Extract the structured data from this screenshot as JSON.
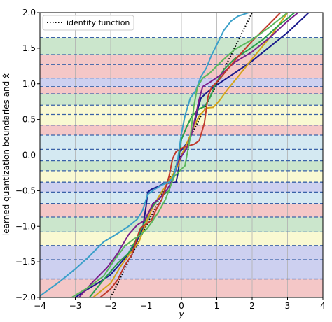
{
  "chart_data": {
    "type": "line",
    "xlabel": "y",
    "ylabel": "learned quantization boundaries and x̂",
    "xlim": [
      -4,
      4
    ],
    "ylim": [
      -2,
      2
    ],
    "x_ticks": [
      -4,
      -3,
      -2,
      -1,
      0,
      1,
      2,
      3,
      4
    ],
    "y_ticks": [
      -2.0,
      -1.5,
      -1.0,
      -0.5,
      0.0,
      0.5,
      1.0,
      1.5,
      2.0
    ],
    "x_tick_labels": [
      "−4",
      "−3",
      "−2",
      "−1",
      "0",
      "1",
      "2",
      "3",
      "4"
    ],
    "y_tick_labels": [
      "−2.0",
      "−1.5",
      "−1.0",
      "−0.5",
      "0.0",
      "0.5",
      "1.0",
      "1.5",
      "2.0"
    ],
    "grid": "vertical",
    "legend": {
      "position": "top-left",
      "entries": [
        "identity function"
      ]
    },
    "bands": [
      {
        "from": -2.0,
        "to": -1.74,
        "color": "#f4c7c7"
      },
      {
        "from": -1.74,
        "to": -1.47,
        "color": "#cdd0f0"
      },
      {
        "from": -1.47,
        "to": -1.27,
        "color": "#cdd0f0"
      },
      {
        "from": -1.27,
        "to": -1.08,
        "color": "#f9f9d2"
      },
      {
        "from": -1.08,
        "to": -0.87,
        "color": "#cbe6cc"
      },
      {
        "from": -0.87,
        "to": -0.68,
        "color": "#f4c7c7"
      },
      {
        "from": -0.68,
        "to": -0.52,
        "color": "#d4e9f2"
      },
      {
        "from": -0.52,
        "to": -0.38,
        "color": "#cdd0f0"
      },
      {
        "from": -0.38,
        "to": -0.22,
        "color": "#f9f9d2"
      },
      {
        "from": -0.22,
        "to": -0.08,
        "color": "#cbe6cc"
      },
      {
        "from": -0.08,
        "to": 0.08,
        "color": "#d4e9f2"
      },
      {
        "from": 0.08,
        "to": 0.28,
        "color": "#d4e9f2"
      },
      {
        "from": 0.28,
        "to": 0.42,
        "color": "#f4c7c7"
      },
      {
        "from": 0.42,
        "to": 0.57,
        "color": "#f9f9d2"
      },
      {
        "from": 0.57,
        "to": 0.7,
        "color": "#f9f9d2"
      },
      {
        "from": 0.7,
        "to": 0.86,
        "color": "#cbe6cc"
      },
      {
        "from": 0.86,
        "to": 0.96,
        "color": "#f4c7c7"
      },
      {
        "from": 0.96,
        "to": 1.08,
        "color": "#cdd0f0"
      },
      {
        "from": 1.08,
        "to": 1.27,
        "color": "#f4c7c7"
      },
      {
        "from": 1.27,
        "to": 1.41,
        "color": "#f4c7c7"
      },
      {
        "from": 1.41,
        "to": 1.65,
        "color": "#cbe6cc"
      },
      {
        "from": 1.65,
        "to": 2.0,
        "color": "#ffffff"
      }
    ],
    "boundaries": [
      -1.74,
      -1.47,
      -1.27,
      -1.08,
      -0.87,
      -0.68,
      -0.52,
      -0.38,
      -0.22,
      -0.08,
      0.08,
      0.28,
      0.42,
      0.57,
      0.7,
      0.86,
      0.96,
      1.08,
      1.27,
      1.41,
      1.65
    ],
    "boundary_color": "#3a62a8",
    "series": [
      {
        "name": "identity function",
        "color": "#000000",
        "style": "dotted",
        "points": [
          [
            -2,
            -2
          ],
          [
            2,
            2
          ]
        ]
      },
      {
        "color": "#1a1a8c",
        "points": [
          [
            -3.0,
            -2.0
          ],
          [
            -2.7,
            -1.9
          ],
          [
            -2.3,
            -1.78
          ],
          [
            -2.0,
            -1.68
          ],
          [
            -1.6,
            -1.45
          ],
          [
            -1.3,
            -1.25
          ],
          [
            -1.1,
            -1.05
          ],
          [
            -1.0,
            -0.72
          ],
          [
            -0.95,
            -0.52
          ],
          [
            -0.85,
            -0.48
          ],
          [
            -0.65,
            -0.44
          ],
          [
            -0.5,
            -0.4
          ],
          [
            -0.3,
            -0.39
          ],
          [
            -0.15,
            -0.38
          ],
          [
            -0.08,
            -0.2
          ],
          [
            -0.05,
            0.05
          ],
          [
            0.05,
            0.1
          ],
          [
            0.2,
            0.2
          ],
          [
            0.35,
            0.4
          ],
          [
            0.45,
            0.62
          ],
          [
            0.55,
            0.8
          ],
          [
            0.7,
            0.87
          ],
          [
            0.9,
            0.95
          ],
          [
            1.2,
            1.05
          ],
          [
            1.5,
            1.15
          ],
          [
            2.0,
            1.32
          ],
          [
            2.5,
            1.52
          ],
          [
            3.0,
            1.72
          ],
          [
            3.6,
            2.0
          ]
        ]
      },
      {
        "color": "#d4a31a",
        "points": [
          [
            -2.5,
            -2.0
          ],
          [
            -2.0,
            -1.8
          ],
          [
            -1.7,
            -1.55
          ],
          [
            -1.4,
            -1.35
          ],
          [
            -1.2,
            -1.22
          ],
          [
            -1.0,
            -0.95
          ],
          [
            -0.8,
            -0.72
          ],
          [
            -0.6,
            -0.55
          ],
          [
            -0.4,
            -0.4
          ],
          [
            -0.25,
            -0.28
          ],
          [
            -0.1,
            -0.15
          ],
          [
            0.05,
            0.05
          ],
          [
            0.2,
            0.22
          ],
          [
            0.35,
            0.4
          ],
          [
            0.5,
            0.55
          ],
          [
            0.7,
            0.66
          ],
          [
            0.9,
            0.67
          ],
          [
            1.1,
            0.78
          ],
          [
            1.3,
            0.92
          ],
          [
            1.6,
            1.1
          ],
          [
            2.0,
            1.35
          ],
          [
            2.5,
            1.65
          ],
          [
            3.0,
            2.0
          ]
        ]
      },
      {
        "color": "#2aa04a",
        "points": [
          [
            -2.6,
            -2.0
          ],
          [
            -2.2,
            -1.75
          ],
          [
            -1.8,
            -1.52
          ],
          [
            -1.5,
            -1.38
          ],
          [
            -1.2,
            -1.12
          ],
          [
            -1.05,
            -0.95
          ],
          [
            -0.9,
            -0.78
          ],
          [
            -0.7,
            -0.65
          ],
          [
            -0.5,
            -0.55
          ],
          [
            -0.35,
            -0.5
          ],
          [
            -0.2,
            -0.25
          ],
          [
            -0.1,
            -0.1
          ],
          [
            0.0,
            0.22
          ],
          [
            0.15,
            0.4
          ],
          [
            0.3,
            0.55
          ],
          [
            0.5,
            0.65
          ],
          [
            0.65,
            0.68
          ],
          [
            0.8,
            0.8
          ],
          [
            0.95,
            0.98
          ],
          [
            1.2,
            1.2
          ],
          [
            1.5,
            1.35
          ],
          [
            1.9,
            1.48
          ],
          [
            2.3,
            1.62
          ],
          [
            2.7,
            1.8
          ],
          [
            3.2,
            2.0
          ]
        ]
      },
      {
        "color": "#7a1f8c",
        "points": [
          [
            -2.9,
            -2.0
          ],
          [
            -2.5,
            -1.78
          ],
          [
            -2.1,
            -1.58
          ],
          [
            -1.8,
            -1.38
          ],
          [
            -1.5,
            -1.12
          ],
          [
            -1.25,
            -0.98
          ],
          [
            -1.05,
            -0.92
          ],
          [
            -0.9,
            -0.78
          ],
          [
            -0.8,
            -0.68
          ],
          [
            -0.6,
            -0.6
          ],
          [
            -0.4,
            -0.48
          ],
          [
            -0.25,
            -0.35
          ],
          [
            -0.1,
            -0.1
          ],
          [
            0.0,
            -0.02
          ],
          [
            0.15,
            0.1
          ],
          [
            0.3,
            0.32
          ],
          [
            0.5,
            0.78
          ],
          [
            0.6,
            0.96
          ],
          [
            0.8,
            1.02
          ],
          [
            1.1,
            1.12
          ],
          [
            1.5,
            1.3
          ],
          [
            2.0,
            1.45
          ],
          [
            2.5,
            1.65
          ],
          [
            3.0,
            1.88
          ],
          [
            3.3,
            2.0
          ]
        ]
      },
      {
        "color": "#c0392b",
        "points": [
          [
            -2.3,
            -2.0
          ],
          [
            -2.0,
            -1.88
          ],
          [
            -1.8,
            -1.75
          ],
          [
            -1.6,
            -1.55
          ],
          [
            -1.4,
            -1.4
          ],
          [
            -1.25,
            -1.15
          ],
          [
            -1.15,
            -1.02
          ],
          [
            -1.0,
            -0.97
          ],
          [
            -0.85,
            -0.92
          ],
          [
            -0.7,
            -0.75
          ],
          [
            -0.55,
            -0.62
          ],
          [
            -0.35,
            -0.3
          ],
          [
            -0.25,
            -0.05
          ],
          [
            -0.15,
            0.05
          ],
          [
            0.1,
            0.12
          ],
          [
            0.35,
            0.15
          ],
          [
            0.5,
            0.2
          ],
          [
            0.65,
            0.45
          ],
          [
            0.75,
            0.82
          ],
          [
            0.85,
            0.95
          ],
          [
            1.05,
            1.05
          ],
          [
            1.3,
            1.2
          ],
          [
            1.6,
            1.38
          ],
          [
            2.0,
            1.6
          ],
          [
            2.5,
            1.85
          ],
          [
            2.8,
            2.0
          ]
        ]
      },
      {
        "color": "#3aa0c9",
        "points": [
          [
            -4.0,
            -1.98
          ],
          [
            -3.5,
            -1.8
          ],
          [
            -3.0,
            -1.6
          ],
          [
            -2.6,
            -1.42
          ],
          [
            -2.2,
            -1.22
          ],
          [
            -1.8,
            -1.1
          ],
          [
            -1.5,
            -1.0
          ],
          [
            -1.25,
            -0.9
          ],
          [
            -1.1,
            -0.78
          ],
          [
            -0.95,
            -0.55
          ],
          [
            -0.75,
            -0.48
          ],
          [
            -0.55,
            -0.42
          ],
          [
            -0.35,
            -0.38
          ],
          [
            -0.22,
            -0.3
          ],
          [
            -0.1,
            -0.05
          ],
          [
            0.0,
            0.3
          ],
          [
            0.1,
            0.55
          ],
          [
            0.25,
            0.8
          ],
          [
            0.4,
            0.9
          ],
          [
            0.55,
            1.1
          ],
          [
            0.7,
            1.22
          ],
          [
            0.85,
            1.4
          ],
          [
            1.0,
            1.55
          ],
          [
            1.2,
            1.75
          ],
          [
            1.4,
            1.88
          ],
          [
            1.6,
            1.95
          ],
          [
            1.9,
            2.0
          ]
        ]
      },
      {
        "color": "#5cb85c",
        "points": [
          [
            -3.1,
            -2.0
          ],
          [
            -2.6,
            -1.85
          ],
          [
            -2.2,
            -1.7
          ],
          [
            -1.9,
            -1.48
          ],
          [
            -1.6,
            -1.28
          ],
          [
            -1.35,
            -1.18
          ],
          [
            -1.15,
            -1.12
          ],
          [
            -1.0,
            -1.05
          ],
          [
            -0.85,
            -0.95
          ],
          [
            -0.65,
            -0.8
          ],
          [
            -0.45,
            -0.62
          ],
          [
            -0.3,
            -0.42
          ],
          [
            -0.2,
            -0.3
          ],
          [
            -0.05,
            -0.22
          ],
          [
            0.1,
            -0.15
          ],
          [
            0.25,
            0.25
          ],
          [
            0.35,
            0.68
          ],
          [
            0.45,
            0.95
          ],
          [
            0.6,
            1.08
          ],
          [
            0.8,
            1.15
          ],
          [
            1.1,
            1.3
          ],
          [
            1.5,
            1.48
          ],
          [
            2.0,
            1.62
          ],
          [
            2.5,
            1.8
          ],
          [
            3.0,
            2.0
          ]
        ]
      }
    ]
  }
}
